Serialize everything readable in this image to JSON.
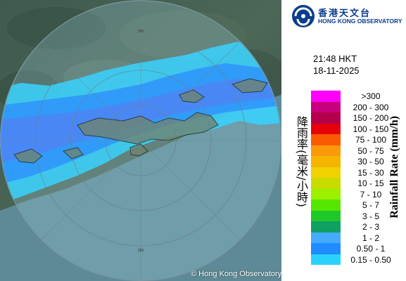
{
  "header": {
    "logo_cn": "香港天文台",
    "logo_en": "HONG KONG OBSERVATORY"
  },
  "timestamp": {
    "time": "21:48 HKT",
    "date": "18-11-2025"
  },
  "map": {
    "copyright": "© Hong Kong Observatory",
    "range_rings_km": [
      64,
      128,
      192,
      256
    ],
    "range_label": "256"
  },
  "legend": {
    "title_en": "Rainfall Rate (mm/h)",
    "title_cn": "降雨率(毫米/小時)",
    "bins": [
      {
        "label": ">300",
        "color": "#ff00ff"
      },
      {
        "label": "200 - 300",
        "color": "#c8007d"
      },
      {
        "label": "150 - 200",
        "color": "#b4004b"
      },
      {
        "label": "100 - 150",
        "color": "#e6000a"
      },
      {
        "label": "75 - 100",
        "color": "#fa5a00"
      },
      {
        "label": "50 - 75",
        "color": "#fa9a0a"
      },
      {
        "label": "30 - 50",
        "color": "#f5b400"
      },
      {
        "label": "15 - 30",
        "color": "#f0d200"
      },
      {
        "label": "10 - 15",
        "color": "#c8dc00"
      },
      {
        "label": "7 - 10",
        "color": "#9cf000"
      },
      {
        "label": "5 - 7",
        "color": "#56e600"
      },
      {
        "label": "3 - 5",
        "color": "#1ec828"
      },
      {
        "label": "2 - 3",
        "color": "#0fa064"
      },
      {
        "label": "1 - 2",
        "color": "#46aaff"
      },
      {
        "label": "0.50 - 1",
        "color": "#1e8cff"
      },
      {
        "label": "0.15 - 0.50",
        "color": "#2ad2ff"
      }
    ]
  }
}
